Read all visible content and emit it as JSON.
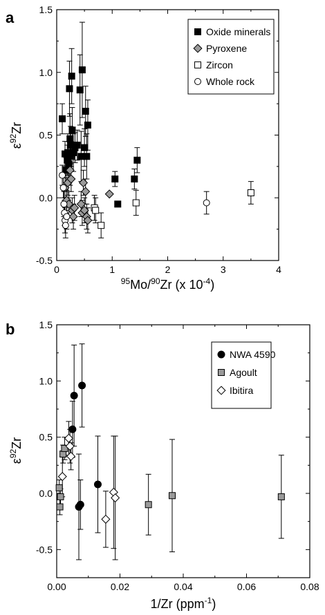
{
  "chart_data": [
    {
      "type": "scatter",
      "panel": "a",
      "title": "",
      "xlabel": {
        "sup1": "95",
        "mid": "Mo/",
        "sup2": "90",
        "base": "Zr (x 10",
        "sup3": "-4",
        "end": ")"
      },
      "ylabel": {
        "base": "ε",
        "sup": "92",
        "rest": "Zr"
      },
      "xlim": [
        0,
        4
      ],
      "ylim": [
        -0.5,
        1.5
      ],
      "xticks": [
        "0",
        "1",
        "2",
        "3",
        "4"
      ],
      "yticks": [
        "-0.5",
        "0.0",
        "0.5",
        "1.0",
        "1.5"
      ],
      "xtick_values": [
        0,
        1,
        2,
        3,
        4
      ],
      "ytick_values": [
        -0.5,
        0,
        0.5,
        1.0,
        1.5
      ],
      "legend_position": "top-right",
      "series": [
        {
          "name": "Oxide minerals",
          "marker": "square-filled",
          "points": [
            {
              "x": 0.1,
              "y": 0.63,
              "err": 0.12
            },
            {
              "x": 0.15,
              "y": 0.35,
              "err": 0.1
            },
            {
              "x": 0.17,
              "y": 0.22,
              "err": 0.1
            },
            {
              "x": 0.19,
              "y": 0.3,
              "err": 0.12
            },
            {
              "x": 0.2,
              "y": 0.36,
              "err": 0.15
            },
            {
              "x": 0.22,
              "y": 0.27,
              "err": 0.15
            },
            {
              "x": 0.23,
              "y": 0.87,
              "err": 0.22
            },
            {
              "x": 0.24,
              "y": 0.47,
              "err": 0.2
            },
            {
              "x": 0.25,
              "y": 0.42,
              "err": 0.15
            },
            {
              "x": 0.26,
              "y": 0.33,
              "err": 0.12
            },
            {
              "x": 0.27,
              "y": 0.97,
              "err": 0.22
            },
            {
              "x": 0.28,
              "y": 0.54,
              "err": 0.18
            },
            {
              "x": 0.3,
              "y": 0.36,
              "err": 0.15
            },
            {
              "x": 0.33,
              "y": 0.4,
              "err": 0.12
            },
            {
              "x": 0.37,
              "y": 0.42,
              "err": 0.12
            },
            {
              "x": 0.42,
              "y": 0.86,
              "err": 0.28
            },
            {
              "x": 0.44,
              "y": 0.33,
              "err": 0.2
            },
            {
              "x": 0.46,
              "y": 1.02,
              "err": 0.38
            },
            {
              "x": 0.5,
              "y": 0.4,
              "err": 0.15
            },
            {
              "x": 0.52,
              "y": 0.69,
              "err": 0.2
            },
            {
              "x": 0.54,
              "y": 0.33,
              "err": 0.18
            },
            {
              "x": 0.56,
              "y": 0.58,
              "err": 0.2
            },
            {
              "x": 1.05,
              "y": 0.15,
              "err": 0.06
            },
            {
              "x": 1.1,
              "y": -0.05,
              "err": 0.0
            },
            {
              "x": 1.4,
              "y": 0.15,
              "err": 0.08
            },
            {
              "x": 1.45,
              "y": 0.3,
              "err": 0.1
            }
          ]
        },
        {
          "name": "Pyroxene",
          "marker": "diamond-gray",
          "points": [
            {
              "x": 0.15,
              "y": 0.08,
              "err": 0.08
            },
            {
              "x": 0.18,
              "y": -0.02,
              "err": 0.08
            },
            {
              "x": 0.2,
              "y": 0.12,
              "err": 0.1
            },
            {
              "x": 0.22,
              "y": -0.05,
              "err": 0.1
            },
            {
              "x": 0.24,
              "y": 0.22,
              "err": 0.12
            },
            {
              "x": 0.26,
              "y": 0.15,
              "err": 0.1
            },
            {
              "x": 0.28,
              "y": -0.1,
              "err": 0.1
            },
            {
              "x": 0.3,
              "y": -0.15,
              "err": 0.1
            },
            {
              "x": 0.32,
              "y": -0.08,
              "err": 0.1
            },
            {
              "x": 0.44,
              "y": -0.05,
              "err": 0.1
            },
            {
              "x": 0.46,
              "y": -0.12,
              "err": 0.1
            },
            {
              "x": 0.48,
              "y": 0.12,
              "err": 0.1
            },
            {
              "x": 0.5,
              "y": -0.1,
              "err": 0.1
            },
            {
              "x": 0.52,
              "y": 0.05,
              "err": 0.1
            },
            {
              "x": 0.54,
              "y": -0.15,
              "err": 0.1
            },
            {
              "x": 0.56,
              "y": -0.18,
              "err": 0.1
            },
            {
              "x": 0.95,
              "y": 0.03,
              "err": 0.0
            }
          ]
        },
        {
          "name": "Zircon",
          "marker": "square-open",
          "points": [
            {
              "x": 0.68,
              "y": -0.08,
              "err": 0.1
            },
            {
              "x": 0.7,
              "y": -0.1,
              "err": 0.1
            },
            {
              "x": 0.8,
              "y": -0.22,
              "err": 0.1
            },
            {
              "x": 1.43,
              "y": -0.04,
              "err": 0.1
            },
            {
              "x": 3.5,
              "y": 0.04,
              "err": 0.09
            }
          ]
        },
        {
          "name": "Whole rock",
          "marker": "circle-open",
          "points": [
            {
              "x": 0.1,
              "y": 0.18,
              "err": 0.08
            },
            {
              "x": 0.12,
              "y": 0.08,
              "err": 0.08
            },
            {
              "x": 0.13,
              "y": -0.05,
              "err": 0.1
            },
            {
              "x": 0.14,
              "y": -0.12,
              "err": 0.1
            },
            {
              "x": 0.15,
              "y": -0.18,
              "err": 0.1
            },
            {
              "x": 0.16,
              "y": -0.22,
              "err": 0.1
            },
            {
              "x": 0.18,
              "y": -0.15,
              "err": 0.1
            },
            {
              "x": 2.7,
              "y": -0.04,
              "err": 0.09
            }
          ]
        }
      ]
    },
    {
      "type": "scatter",
      "panel": "b",
      "title": "",
      "xlabel": {
        "base": "1/Zr (ppm",
        "sup": "-1",
        "end": ")"
      },
      "ylabel": {
        "base": "ε",
        "sup": "92",
        "rest": "Zr"
      },
      "xlim": [
        0,
        0.08
      ],
      "ylim": [
        -0.75,
        1.5
      ],
      "xticks": [
        "0.00",
        "0.02",
        "0.04",
        "0.06",
        "0.08"
      ],
      "yticks": [
        "-0.5",
        "0.0",
        "0.5",
        "1.0",
        "1.5"
      ],
      "xtick_values": [
        0,
        0.02,
        0.04,
        0.06,
        0.08
      ],
      "ytick_values": [
        -0.5,
        0,
        0.5,
        1.0,
        1.5
      ],
      "legend_position": "top-right",
      "series": [
        {
          "name": "NWA 4590",
          "marker": "circle-filled",
          "points": [
            {
              "x": 0.005,
              "y": 0.57,
              "err": 0.25
            },
            {
              "x": 0.0055,
              "y": 0.87,
              "err": 0.45
            },
            {
              "x": 0.007,
              "y": -0.12,
              "err": 0.47
            },
            {
              "x": 0.0075,
              "y": -0.1,
              "err": 0.22
            },
            {
              "x": 0.008,
              "y": 0.96,
              "err": 0.37
            },
            {
              "x": 0.013,
              "y": 0.08,
              "err": 0.43
            }
          ]
        },
        {
          "name": "Agoult",
          "marker": "square-gray",
          "points": [
            {
              "x": 0.0008,
              "y": 0.05,
              "err": 0.07
            },
            {
              "x": 0.001,
              "y": -0.12,
              "err": 0.07
            },
            {
              "x": 0.0012,
              "y": -0.03,
              "err": 0.07
            },
            {
              "x": 0.002,
              "y": 0.35,
              "err": 0.08
            },
            {
              "x": 0.0025,
              "y": 0.4,
              "err": 0.1
            },
            {
              "x": 0.029,
              "y": -0.1,
              "err": 0.27
            },
            {
              "x": 0.0365,
              "y": -0.02,
              "err": 0.5
            },
            {
              "x": 0.071,
              "y": -0.03,
              "err": 0.37
            }
          ]
        },
        {
          "name": "Ibitira",
          "marker": "diamond-open",
          "points": [
            {
              "x": 0.0018,
              "y": 0.15,
              "err": 0.18
            },
            {
              "x": 0.0038,
              "y": 0.49,
              "err": 0.15
            },
            {
              "x": 0.0042,
              "y": 0.42,
              "err": 0.15
            },
            {
              "x": 0.0045,
              "y": 0.33,
              "err": 0.12
            },
            {
              "x": 0.0155,
              "y": -0.23,
              "err": 0.25
            },
            {
              "x": 0.018,
              "y": 0.01,
              "err": 0.5
            },
            {
              "x": 0.0185,
              "y": -0.04,
              "err": 0.55
            }
          ]
        }
      ]
    }
  ]
}
